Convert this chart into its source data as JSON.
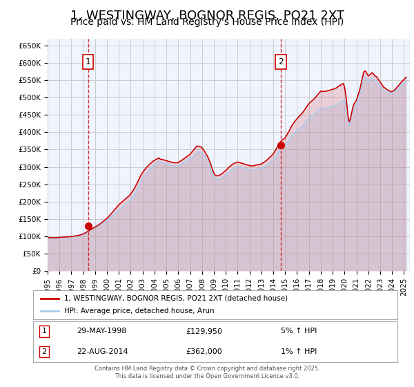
{
  "title": "1, WESTINGWAY, BOGNOR REGIS, PO21 2XT",
  "subtitle": "Price paid vs. HM Land Registry's House Price Index (HPI)",
  "title_fontsize": 13,
  "subtitle_fontsize": 10,
  "xlabel": "",
  "ylabel": "",
  "background_color": "#ffffff",
  "grid_color": "#cccccc",
  "plot_bg_color": "#f0f4ff",
  "red_line_color": "#cc0000",
  "blue_line_color": "#aaccee",
  "annotation_box_color": "#ffffff",
  "annotation_border_color": "#cc0000",
  "dashed_line_color": "#cc0000",
  "ylim": [
    0,
    670000
  ],
  "ytick_values": [
    0,
    50000,
    100000,
    150000,
    200000,
    250000,
    300000,
    350000,
    400000,
    450000,
    500000,
    550000,
    600000,
    650000
  ],
  "ytick_labels": [
    "£0",
    "£50K",
    "£100K",
    "£150K",
    "£200K",
    "£250K",
    "£300K",
    "£350K",
    "£400K",
    "£450K",
    "£500K",
    "£550K",
    "£600K",
    "£650K"
  ],
  "xlim_start": 1995.0,
  "xlim_end": 2025.5,
  "xtick_years": [
    1995,
    1996,
    1997,
    1998,
    1999,
    2000,
    2001,
    2002,
    2003,
    2004,
    2005,
    2006,
    2007,
    2008,
    2009,
    2010,
    2011,
    2012,
    2013,
    2014,
    2015,
    2016,
    2017,
    2018,
    2019,
    2020,
    2021,
    2022,
    2023,
    2024,
    2025
  ],
  "sale1_x": 1998.41,
  "sale1_y": 129950,
  "sale1_label": "1",
  "sale2_x": 2014.64,
  "sale2_y": 362000,
  "sale2_label": "2",
  "legend_red_label": "1, WESTINGWAY, BOGNOR REGIS, PO21 2XT (detached house)",
  "legend_blue_label": "HPI: Average price, detached house, Arun",
  "table_row1": [
    "1",
    "29-MAY-1998",
    "£129,950",
    "5% ↑ HPI"
  ],
  "table_row2": [
    "2",
    "22-AUG-2014",
    "£362,000",
    "1% ↑ HPI"
  ],
  "footer": "Contains HM Land Registry data © Crown copyright and database right 2025.\nThis data is licensed under the Open Government Licence v3.0.",
  "hpi_data_x": [
    1995.0,
    1995.1,
    1995.2,
    1995.3,
    1995.4,
    1995.5,
    1995.6,
    1995.7,
    1995.8,
    1995.9,
    1996.0,
    1996.1,
    1996.2,
    1996.3,
    1996.4,
    1996.5,
    1996.6,
    1996.7,
    1996.8,
    1996.9,
    1997.0,
    1997.1,
    1997.2,
    1997.3,
    1997.4,
    1997.5,
    1997.6,
    1997.7,
    1997.8,
    1997.9,
    1998.0,
    1998.1,
    1998.2,
    1998.3,
    1998.4,
    1998.5,
    1998.6,
    1998.7,
    1998.8,
    1998.9,
    1999.0,
    1999.1,
    1999.2,
    1999.3,
    1999.4,
    1999.5,
    1999.6,
    1999.7,
    1999.8,
    1999.9,
    2000.0,
    2000.1,
    2000.2,
    2000.3,
    2000.4,
    2000.5,
    2000.6,
    2000.7,
    2000.8,
    2000.9,
    2001.0,
    2001.1,
    2001.2,
    2001.3,
    2001.4,
    2001.5,
    2001.6,
    2001.7,
    2001.8,
    2001.9,
    2002.0,
    2002.1,
    2002.2,
    2002.3,
    2002.4,
    2002.5,
    2002.6,
    2002.7,
    2002.8,
    2002.9,
    2003.0,
    2003.1,
    2003.2,
    2003.3,
    2003.4,
    2003.5,
    2003.6,
    2003.7,
    2003.8,
    2003.9,
    2004.0,
    2004.1,
    2004.2,
    2004.3,
    2004.4,
    2004.5,
    2004.6,
    2004.7,
    2004.8,
    2004.9,
    2005.0,
    2005.1,
    2005.2,
    2005.3,
    2005.4,
    2005.5,
    2005.6,
    2005.7,
    2005.8,
    2005.9,
    2006.0,
    2006.1,
    2006.2,
    2006.3,
    2006.4,
    2006.5,
    2006.6,
    2006.7,
    2006.8,
    2006.9,
    2007.0,
    2007.1,
    2007.2,
    2007.3,
    2007.4,
    2007.5,
    2007.6,
    2007.7,
    2007.8,
    2007.9,
    2008.0,
    2008.1,
    2008.2,
    2008.3,
    2008.4,
    2008.5,
    2008.6,
    2008.7,
    2008.8,
    2008.9,
    2009.0,
    2009.1,
    2009.2,
    2009.3,
    2009.4,
    2009.5,
    2009.6,
    2009.7,
    2009.8,
    2009.9,
    2010.0,
    2010.1,
    2010.2,
    2010.3,
    2010.4,
    2010.5,
    2010.6,
    2010.7,
    2010.8,
    2010.9,
    2011.0,
    2011.1,
    2011.2,
    2011.3,
    2011.4,
    2011.5,
    2011.6,
    2011.7,
    2011.8,
    2011.9,
    2012.0,
    2012.1,
    2012.2,
    2012.3,
    2012.4,
    2012.5,
    2012.6,
    2012.7,
    2012.8,
    2012.9,
    2013.0,
    2013.1,
    2013.2,
    2013.3,
    2013.4,
    2013.5,
    2013.6,
    2013.7,
    2013.8,
    2013.9,
    2014.0,
    2014.1,
    2014.2,
    2014.3,
    2014.4,
    2014.5,
    2014.6,
    2014.7,
    2014.8,
    2014.9,
    2015.0,
    2015.1,
    2015.2,
    2015.3,
    2015.4,
    2015.5,
    2015.6,
    2015.7,
    2015.8,
    2015.9,
    2016.0,
    2016.1,
    2016.2,
    2016.3,
    2016.4,
    2016.5,
    2016.6,
    2016.7,
    2016.8,
    2016.9,
    2017.0,
    2017.1,
    2017.2,
    2017.3,
    2017.4,
    2017.5,
    2017.6,
    2017.7,
    2017.8,
    2017.9,
    2018.0,
    2018.1,
    2018.2,
    2018.3,
    2018.4,
    2018.5,
    2018.6,
    2018.7,
    2018.8,
    2018.9,
    2019.0,
    2019.1,
    2019.2,
    2019.3,
    2019.4,
    2019.5,
    2019.6,
    2019.7,
    2019.8,
    2019.9,
    2020.0,
    2020.1,
    2020.2,
    2020.3,
    2020.4,
    2020.5,
    2020.6,
    2020.7,
    2020.8,
    2020.9,
    2021.0,
    2021.1,
    2021.2,
    2021.3,
    2021.4,
    2021.5,
    2021.6,
    2021.7,
    2021.8,
    2021.9,
    2022.0,
    2022.1,
    2022.2,
    2022.3,
    2022.4,
    2022.5,
    2022.6,
    2022.7,
    2022.8,
    2022.9,
    2023.0,
    2023.1,
    2023.2,
    2023.3,
    2023.4,
    2023.5,
    2023.6,
    2023.7,
    2023.8,
    2023.9,
    2024.0,
    2024.1,
    2024.2,
    2024.3,
    2024.4,
    2024.5,
    2024.6,
    2024.7,
    2024.8,
    2024.9,
    2025.0,
    2025.1,
    2025.2
  ],
  "hpi_data_y": [
    95000,
    95200,
    95300,
    95100,
    95000,
    94800,
    94900,
    95100,
    95400,
    95600,
    96000,
    96200,
    96400,
    96600,
    96800,
    97000,
    97200,
    97400,
    97600,
    97800,
    98000,
    98500,
    99000,
    99500,
    100000,
    100500,
    101000,
    102000,
    103000,
    104000,
    105000,
    107000,
    109000,
    111000,
    113000,
    115000,
    117000,
    119000,
    121000,
    123000,
    125000,
    127000,
    129000,
    131000,
    133000,
    135000,
    137000,
    139000,
    141000,
    143000,
    145000,
    148000,
    151000,
    154000,
    157000,
    160000,
    163000,
    166000,
    169000,
    172000,
    175000,
    178000,
    181000,
    184000,
    187000,
    190000,
    193000,
    196000,
    199000,
    202000,
    205000,
    210000,
    215000,
    220000,
    225000,
    232000,
    239000,
    246000,
    253000,
    260000,
    267000,
    271000,
    275000,
    279000,
    283000,
    287000,
    291000,
    295000,
    299000,
    303000,
    307000,
    310000,
    313000,
    316000,
    316000,
    313000,
    313000,
    312000,
    311000,
    310000,
    309000,
    308000,
    307000,
    306000,
    305000,
    304000,
    303000,
    303000,
    303000,
    303000,
    303000,
    305000,
    307000,
    309000,
    311000,
    313000,
    315000,
    317000,
    319000,
    321000,
    323000,
    326000,
    329000,
    332000,
    336000,
    340000,
    343000,
    344000,
    343000,
    342000,
    340000,
    337000,
    332000,
    327000,
    322000,
    316000,
    309000,
    300000,
    290000,
    281000,
    272000,
    268000,
    266000,
    264000,
    265000,
    266000,
    268000,
    270000,
    272000,
    275000,
    278000,
    281000,
    284000,
    287000,
    290000,
    293000,
    295000,
    297000,
    299000,
    300000,
    301000,
    300000,
    300000,
    299000,
    298000,
    297000,
    296000,
    295000,
    294000,
    293000,
    292000,
    291000,
    291000,
    291000,
    292000,
    293000,
    294000,
    294000,
    295000,
    295000,
    296000,
    298000,
    300000,
    302000,
    304000,
    306000,
    309000,
    311000,
    314000,
    317000,
    320000,
    325000,
    330000,
    335000,
    340000,
    346000,
    350000,
    353000,
    355000,
    357000,
    360000,
    365000,
    370000,
    375000,
    380000,
    386000,
    391000,
    395000,
    399000,
    402000,
    405000,
    408000,
    411000,
    413000,
    416000,
    420000,
    424000,
    428000,
    432000,
    436000,
    440000,
    443000,
    446000,
    449000,
    452000,
    455000,
    458000,
    461000,
    464000,
    467000,
    470000,
    469000,
    469000,
    469000,
    469000,
    470000,
    471000,
    472000,
    473000,
    474000,
    475000,
    476000,
    477000,
    479000,
    481000,
    483000,
    485000,
    487000,
    489000,
    491000,
    493000,
    480000,
    460000,
    430000,
    420000,
    430000,
    445000,
    460000,
    470000,
    475000,
    480000,
    490000,
    500000,
    510000,
    525000,
    540000,
    555000,
    560000,
    558000,
    552000,
    548000,
    550000,
    552000,
    556000,
    555000,
    550000,
    548000,
    546000,
    542000,
    538000,
    534000,
    530000,
    526000,
    522000,
    520000,
    518000,
    517000,
    516000,
    515000,
    514000,
    515000,
    516000,
    518000,
    520000,
    523000,
    527000,
    530000,
    533000,
    536000,
    539000,
    542000,
    545000,
    548000
  ],
  "red_data_x": [
    1995.0,
    1995.1,
    1995.2,
    1995.3,
    1995.4,
    1995.5,
    1995.6,
    1995.7,
    1995.8,
    1995.9,
    1996.0,
    1996.1,
    1996.2,
    1996.3,
    1996.4,
    1996.5,
    1996.6,
    1996.7,
    1996.8,
    1996.9,
    1997.0,
    1997.1,
    1997.2,
    1997.3,
    1997.4,
    1997.5,
    1997.6,
    1997.7,
    1997.8,
    1997.9,
    1998.0,
    1998.1,
    1998.2,
    1998.3,
    1998.4,
    1998.5,
    1998.6,
    1998.7,
    1998.8,
    1998.9,
    1999.0,
    1999.1,
    1999.2,
    1999.3,
    1999.4,
    1999.5,
    1999.6,
    1999.7,
    1999.8,
    1999.9,
    2000.0,
    2000.1,
    2000.2,
    2000.3,
    2000.4,
    2000.5,
    2000.6,
    2000.7,
    2000.8,
    2000.9,
    2001.0,
    2001.1,
    2001.2,
    2001.3,
    2001.4,
    2001.5,
    2001.6,
    2001.7,
    2001.8,
    2001.9,
    2002.0,
    2002.1,
    2002.2,
    2002.3,
    2002.4,
    2002.5,
    2002.6,
    2002.7,
    2002.8,
    2002.9,
    2003.0,
    2003.1,
    2003.2,
    2003.3,
    2003.4,
    2003.5,
    2003.6,
    2003.7,
    2003.8,
    2003.9,
    2004.0,
    2004.1,
    2004.2,
    2004.3,
    2004.4,
    2004.5,
    2004.6,
    2004.7,
    2004.8,
    2004.9,
    2005.0,
    2005.1,
    2005.2,
    2005.3,
    2005.4,
    2005.5,
    2005.6,
    2005.7,
    2005.8,
    2005.9,
    2006.0,
    2006.1,
    2006.2,
    2006.3,
    2006.4,
    2006.5,
    2006.6,
    2006.7,
    2006.8,
    2006.9,
    2007.0,
    2007.1,
    2007.2,
    2007.3,
    2007.4,
    2007.5,
    2007.6,
    2007.7,
    2007.8,
    2007.9,
    2008.0,
    2008.1,
    2008.2,
    2008.3,
    2008.4,
    2008.5,
    2008.6,
    2008.7,
    2008.8,
    2008.9,
    2009.0,
    2009.1,
    2009.2,
    2009.3,
    2009.4,
    2009.5,
    2009.6,
    2009.7,
    2009.8,
    2009.9,
    2010.0,
    2010.1,
    2010.2,
    2010.3,
    2010.4,
    2010.5,
    2010.6,
    2010.7,
    2010.8,
    2010.9,
    2011.0,
    2011.1,
    2011.2,
    2011.3,
    2011.4,
    2011.5,
    2011.6,
    2011.7,
    2011.8,
    2011.9,
    2012.0,
    2012.1,
    2012.2,
    2012.3,
    2012.4,
    2012.5,
    2012.6,
    2012.7,
    2012.8,
    2012.9,
    2013.0,
    2013.1,
    2013.2,
    2013.3,
    2013.4,
    2013.5,
    2013.6,
    2013.7,
    2013.8,
    2013.9,
    2014.0,
    2014.1,
    2014.2,
    2014.3,
    2014.4,
    2014.5,
    2014.6,
    2014.7,
    2014.8,
    2014.9,
    2015.0,
    2015.1,
    2015.2,
    2015.3,
    2015.4,
    2015.5,
    2015.6,
    2015.7,
    2015.8,
    2015.9,
    2016.0,
    2016.1,
    2016.2,
    2016.3,
    2016.4,
    2016.5,
    2016.6,
    2016.7,
    2016.8,
    2016.9,
    2017.0,
    2017.1,
    2017.2,
    2017.3,
    2017.4,
    2017.5,
    2017.6,
    2017.7,
    2017.8,
    2017.9,
    2018.0,
    2018.1,
    2018.2,
    2018.3,
    2018.4,
    2018.5,
    2018.6,
    2018.7,
    2018.8,
    2018.9,
    2019.0,
    2019.1,
    2019.2,
    2019.3,
    2019.4,
    2019.5,
    2019.6,
    2019.7,
    2019.8,
    2019.9,
    2020.0,
    2020.1,
    2020.2,
    2020.3,
    2020.4,
    2020.5,
    2020.6,
    2020.7,
    2020.8,
    2020.9,
    2021.0,
    2021.1,
    2021.2,
    2021.3,
    2021.4,
    2021.5,
    2021.6,
    2021.7,
    2021.8,
    2021.9,
    2022.0,
    2022.1,
    2022.2,
    2022.3,
    2022.4,
    2022.5,
    2022.6,
    2022.7,
    2022.8,
    2022.9,
    2023.0,
    2023.1,
    2023.2,
    2023.3,
    2023.4,
    2023.5,
    2023.6,
    2023.7,
    2023.8,
    2023.9,
    2024.0,
    2024.1,
    2024.2,
    2024.3,
    2024.4,
    2024.5,
    2024.6,
    2024.7,
    2024.8,
    2024.9,
    2025.0,
    2025.1,
    2025.2
  ],
  "red_data_y": [
    96000,
    96100,
    96200,
    96000,
    95900,
    95700,
    95800,
    96000,
    96300,
    96500,
    96900,
    97100,
    97300,
    97500,
    97700,
    97900,
    98100,
    98300,
    98500,
    98700,
    99000,
    99500,
    100100,
    100700,
    101300,
    101900,
    102500,
    103500,
    104500,
    105500,
    106500,
    108500,
    110500,
    112500,
    114500,
    116500,
    118500,
    120500,
    122500,
    124500,
    126500,
    128500,
    130500,
    133000,
    135500,
    138000,
    140500,
    143000,
    146000,
    149000,
    152000,
    155000,
    159000,
    163000,
    167000,
    171000,
    175000,
    179000,
    183000,
    187000,
    191000,
    194000,
    197000,
    200000,
    203000,
    206000,
    209000,
    212000,
    215000,
    218000,
    222000,
    227000,
    232000,
    238000,
    244000,
    251000,
    258000,
    265000,
    272000,
    279000,
    284000,
    289000,
    293000,
    297000,
    301000,
    305000,
    308000,
    311000,
    314000,
    317000,
    319000,
    321000,
    323000,
    325000,
    325000,
    322000,
    322000,
    321000,
    320000,
    319000,
    318000,
    317000,
    316000,
    315000,
    314000,
    313000,
    312000,
    312000,
    312000,
    312000,
    313000,
    315000,
    317000,
    319000,
    322000,
    324000,
    327000,
    329000,
    332000,
    334000,
    337000,
    341000,
    345000,
    349000,
    354000,
    358000,
    360000,
    360000,
    359000,
    358000,
    355000,
    351000,
    346000,
    340000,
    334000,
    328000,
    320000,
    311000,
    301000,
    291000,
    282000,
    277000,
    275000,
    274000,
    275000,
    277000,
    279000,
    281000,
    284000,
    287000,
    290000,
    293000,
    297000,
    300000,
    303000,
    306000,
    308000,
    310000,
    312000,
    313000,
    314000,
    313000,
    312000,
    311000,
    310000,
    309000,
    308000,
    307000,
    306000,
    305000,
    304000,
    303000,
    303000,
    303000,
    304000,
    305000,
    306000,
    306000,
    307000,
    307000,
    309000,
    311000,
    313000,
    315000,
    318000,
    321000,
    324000,
    327000,
    331000,
    334000,
    338000,
    343000,
    349000,
    355000,
    361000,
    367000,
    372000,
    376000,
    379000,
    381000,
    384000,
    390000,
    396000,
    402000,
    408000,
    415000,
    421000,
    426000,
    431000,
    435000,
    439000,
    443000,
    447000,
    450000,
    454000,
    458000,
    463000,
    468000,
    473000,
    478000,
    483000,
    486000,
    489000,
    492000,
    495000,
    499000,
    503000,
    507000,
    511000,
    515000,
    519000,
    518000,
    518000,
    518000,
    518000,
    519000,
    520000,
    521000,
    522000,
    523000,
    524000,
    525000,
    526000,
    528000,
    530000,
    533000,
    535000,
    537000,
    539000,
    541000,
    530000,
    510000,
    480000,
    445000,
    430000,
    440000,
    456000,
    472000,
    482000,
    487000,
    492000,
    503000,
    514000,
    525000,
    541000,
    557000,
    572000,
    577000,
    575000,
    568000,
    563000,
    565000,
    568000,
    572000,
    570000,
    565000,
    562000,
    560000,
    555000,
    550000,
    545000,
    540000,
    535000,
    530000,
    528000,
    525000,
    523000,
    521000,
    519000,
    517000,
    518000,
    519000,
    522000,
    525000,
    529000,
    533000,
    537000,
    541000,
    545000,
    549000,
    553000,
    556000,
    559000
  ]
}
